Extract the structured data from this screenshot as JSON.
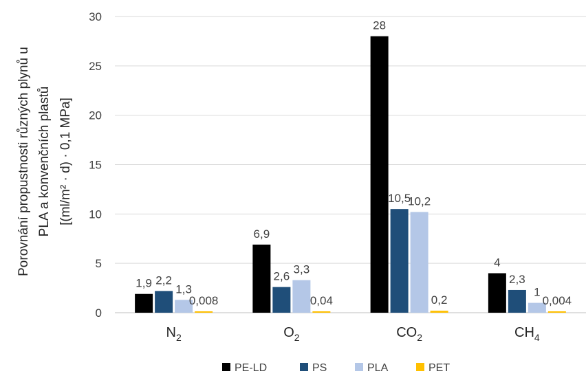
{
  "chart_data": {
    "type": "bar",
    "categories": [
      {
        "base": "N",
        "sub": "2"
      },
      {
        "base": "O",
        "sub": "2"
      },
      {
        "base": "CO",
        "sub": "2"
      },
      {
        "base": "CH",
        "sub": "4"
      }
    ],
    "series": [
      {
        "name": "PE-LD",
        "color": "#000000",
        "values": [
          1.9,
          6.9,
          28,
          4
        ],
        "labels": [
          "1,9",
          "6,9",
          "28",
          "4"
        ]
      },
      {
        "name": "PS",
        "color": "#1f4e79",
        "values": [
          2.2,
          2.6,
          10.5,
          2.3
        ],
        "labels": [
          "2,2",
          "2,6",
          "10,5",
          "2,3"
        ]
      },
      {
        "name": "PLA",
        "color": "#b4c7e7",
        "values": [
          1.3,
          3.3,
          10.2,
          1
        ],
        "labels": [
          "1,3",
          "3,3",
          "10,2",
          "1"
        ]
      },
      {
        "name": "PET",
        "color": "#ffc000",
        "values": [
          0.008,
          0.04,
          0.2,
          0.004
        ],
        "labels": [
          "0,008",
          "0,04",
          "0,2",
          "0,004"
        ]
      }
    ],
    "ylim": [
      0,
      30
    ],
    "yticks": [
      0,
      5,
      10,
      15,
      20,
      25,
      30
    ],
    "ylabel_lines": [
      "Porovnání propustnosti různých plynů u",
      "PLA a konvenčních plastů",
      "[(ml/m² · d) · 0,1 MPa]"
    ],
    "xlabel": "",
    "grid": true,
    "legend_position": "bottom"
  }
}
